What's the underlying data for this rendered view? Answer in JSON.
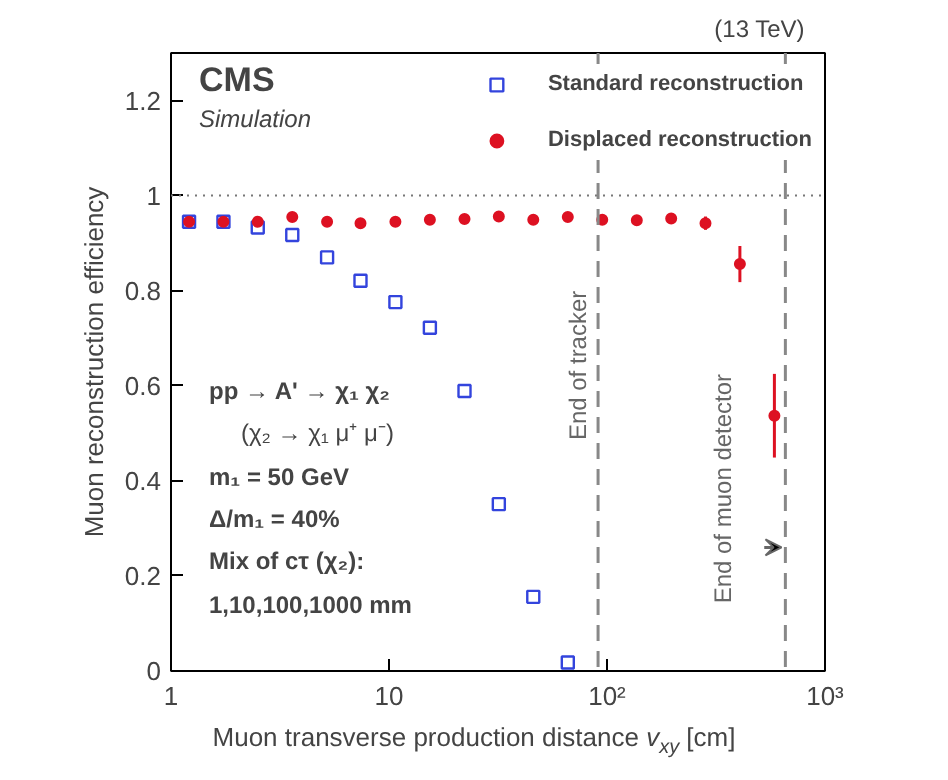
{
  "chart_data": {
    "type": "scatter",
    "xlabel": "Muon transverse production distance v$_{xy}$ [cm]",
    "ylabel": "Muon reconstruction efficiency",
    "log": "x",
    "grid": false,
    "legend": "top right",
    "xlim": [
      1,
      1000
    ],
    "xticks": [
      1,
      10,
      {
        "value": 100,
        "label": "10²"
      },
      {
        "value": 1000,
        "label": "10³"
      }
    ],
    "ylim": [
      0,
      1.3
    ],
    "yticks": [
      0,
      0.2,
      0.4,
      0.6,
      0.8,
      1,
      1.2
    ],
    "x": [
      1.21,
      1.74,
      2.5,
      3.6,
      5.2,
      7.4,
      10.7,
      15.4,
      22.2,
      31.9,
      45.9,
      66.1,
      95.1,
      137,
      197,
      283,
      407,
      586
    ],
    "series": [
      {
        "name": "Standard reconstruction",
        "color": "#3344dd",
        "marker": "square",
        "values": [
          0.945,
          0.945,
          0.933,
          0.917,
          0.87,
          0.821,
          0.776,
          0.722,
          0.589,
          0.351,
          0.156,
          0.018,
          null,
          null,
          null,
          null,
          null,
          null
        ]
      },
      {
        "name": "Displaced reconstruction",
        "color": "#dd1122",
        "marker": "circle",
        "values": [
          0.945,
          0.945,
          0.945,
          0.955,
          0.945,
          0.942,
          0.945,
          0.949,
          0.951,
          0.956,
          0.949,
          0.955,
          0.949,
          0.948,
          0.952,
          0.942,
          0.856,
          0.537
        ],
        "errors": [
          null,
          null,
          null,
          null,
          null,
          null,
          null,
          null,
          null,
          null,
          null,
          null,
          null,
          null,
          0.01,
          0.014,
          0.038,
          0.088
        ]
      }
    ],
    "ref_lines": [
      {
        "axis": "y",
        "value": 1,
        "label": null,
        "color": "#777777",
        "line_style": "dotted"
      },
      {
        "axis": "x",
        "value": 91,
        "label": "End of tracker",
        "color": "#888888",
        "line_style": "dashed"
      },
      {
        "axis": "x",
        "value": 658,
        "label": "End of muon detector",
        "color": "#888888",
        "line_style": "dashed"
      }
    ],
    "annotations": [
      "(13 TeV)",
      "CMS",
      "Simulation",
      "pp → A' → χ₁ χ₂",
      "(χ₂ → χ₁ μ⁺ μ⁻)",
      "m₁ = 50 GeV",
      "Δ/m₁ = 40%",
      "Mix of cτ (χ₂):",
      "1,10,100,1000 mm"
    ]
  }
}
